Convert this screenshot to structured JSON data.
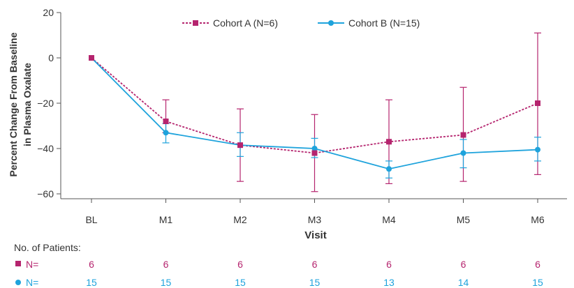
{
  "colors": {
    "cohort_a": "#b5246e",
    "cohort_b": "#1ea3dc",
    "axis": "#555555",
    "text": "#333333"
  },
  "chart_data": {
    "type": "line",
    "title": "",
    "xlabel": "Visit",
    "ylabel_line1": "Percent Change From Baseline",
    "ylabel_line2": "in Plasma Oxalate",
    "ylim": [
      -60,
      20
    ],
    "yticks": [
      20,
      0,
      -20,
      -40,
      -60
    ],
    "ytick_labels": [
      "20",
      "0",
      "−20",
      "−40",
      "−60"
    ],
    "categories": [
      "BL",
      "M1",
      "M2",
      "M3",
      "M4",
      "M5",
      "M6"
    ],
    "grid": false,
    "legend_position": "top",
    "series": [
      {
        "name": "Cohort A (N=6)",
        "marker": "square",
        "line_style": "dashed",
        "values": [
          0,
          -28,
          -38.5,
          -42,
          -37,
          -34,
          -20
        ],
        "err_upper": [
          0,
          -18.5,
          -22.5,
          -25,
          -18.5,
          -13,
          11
        ],
        "err_lower": [
          0,
          -33,
          -54.5,
          -59,
          -55.5,
          -54.5,
          -51.5
        ]
      },
      {
        "name": "Cohort B (N=15)",
        "marker": "circle",
        "line_style": "solid",
        "values": [
          0,
          -33,
          -38.5,
          -40,
          -49,
          -42,
          -40.5
        ],
        "err_upper": [
          0,
          -29,
          -33,
          -35.5,
          -45.5,
          -36,
          -35
        ],
        "err_lower": [
          0,
          -37.5,
          -43.5,
          -44,
          -53,
          -48.5,
          -45.5
        ]
      }
    ]
  },
  "patients_table": {
    "title": "No. of Patients:",
    "rows": [
      {
        "label": "N=",
        "marker": "square",
        "values": [
          "6",
          "6",
          "6",
          "6",
          "6",
          "6",
          "6"
        ]
      },
      {
        "label": "N=",
        "marker": "circle",
        "values": [
          "15",
          "15",
          "15",
          "15",
          "13",
          "14",
          "15"
        ]
      }
    ]
  }
}
